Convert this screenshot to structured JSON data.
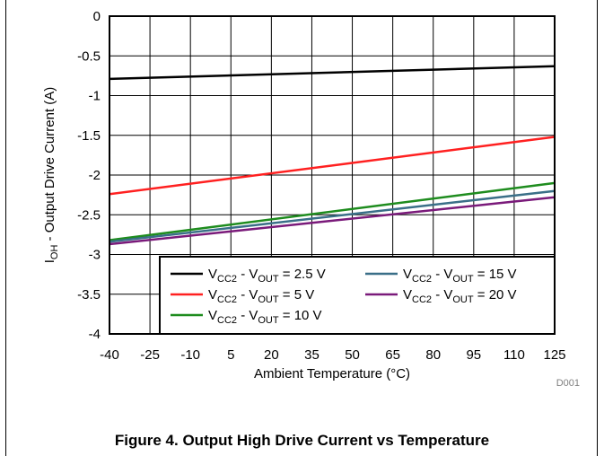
{
  "caption": "Figure 4. Output High Drive Current vs Temperature",
  "figure_id": "D001",
  "chart_data": {
    "type": "line",
    "xlabel": "Ambient Temperature (°C)",
    "ylabel": {
      "main": "I",
      "sub": "OH",
      "rest": " - Output Drive Current (A)"
    },
    "xlim": [
      -40,
      125
    ],
    "ylim": [
      -4,
      0
    ],
    "x_ticks": [
      -40,
      -25,
      -10,
      5,
      20,
      35,
      50,
      65,
      80,
      95,
      110,
      125
    ],
    "y_ticks": [
      0,
      -0.5,
      -1,
      -1.5,
      -2,
      -2.5,
      -3,
      -3.5,
      -4
    ],
    "y_tick_labels": [
      "0",
      "-0.5",
      "-1",
      "-1.5",
      "-2",
      "-2.5",
      "-3",
      "-3.5",
      "-4"
    ],
    "grid": true,
    "legend_position": "bottom-right",
    "series": [
      {
        "label_v": "V",
        "label_cc2": "CC2",
        "label_mid": " - V",
        "label_out": "OUT",
        "label_val": " = 2.5 V",
        "color": "#000000",
        "x": [
          -40,
          125
        ],
        "y": [
          -0.79,
          -0.63
        ]
      },
      {
        "label_v": "V",
        "label_cc2": "CC2",
        "label_mid": " - V",
        "label_out": "OUT",
        "label_val": " = 5 V",
        "color": "#ff2020",
        "x": [
          -40,
          125
        ],
        "y": [
          -2.24,
          -1.52
        ]
      },
      {
        "label_v": "V",
        "label_cc2": "CC2",
        "label_mid": " - V",
        "label_out": "OUT",
        "label_val": " = 10 V",
        "color": "#1e8c1e",
        "x": [
          -40,
          125
        ],
        "y": [
          -2.82,
          -2.1
        ]
      },
      {
        "label_v": "V",
        "label_cc2": "CC2",
        "label_mid": " - V",
        "label_out": "OUT",
        "label_val": " = 15 V",
        "color": "#3a6f88",
        "x": [
          -40,
          125
        ],
        "y": [
          -2.84,
          -2.2
        ]
      },
      {
        "label_v": "V",
        "label_cc2": "CC2",
        "label_mid": " - V",
        "label_out": "OUT",
        "label_val": " = 20 V",
        "color": "#7a1a7a",
        "x": [
          -40,
          125
        ],
        "y": [
          -2.87,
          -2.28
        ]
      }
    ]
  }
}
